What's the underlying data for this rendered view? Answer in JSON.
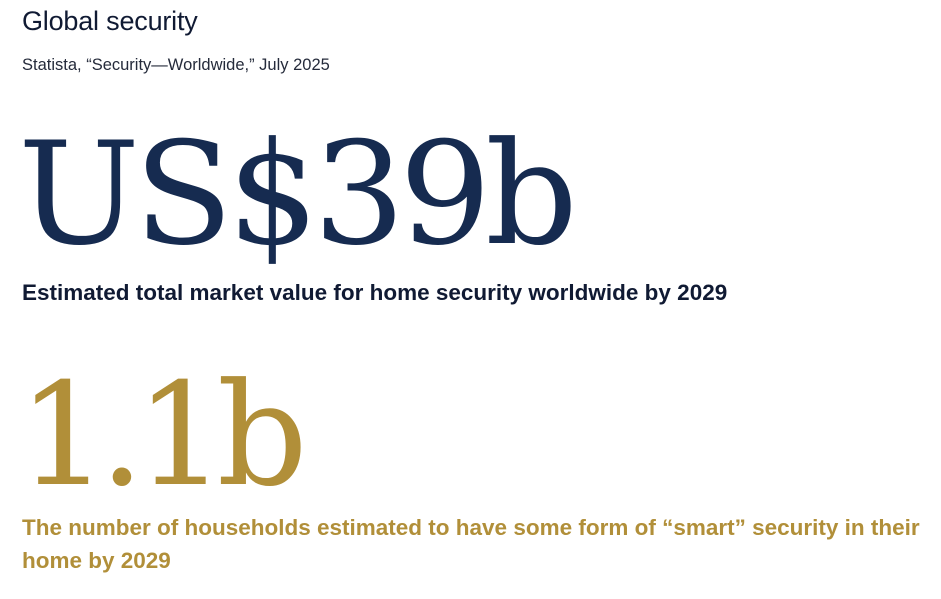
{
  "header": {
    "title": "Global security",
    "source": "Statista, “Security—Worldwide,” July 2025"
  },
  "stats": [
    {
      "value": "US$39b",
      "description": "Estimated total market value for home security worldwide by 2029",
      "color": "#162b50"
    },
    {
      "value": "1.1b",
      "description": "The number of households estimated to have some form of “smart” security in their home by 2029",
      "color": "#b18f39"
    }
  ]
}
